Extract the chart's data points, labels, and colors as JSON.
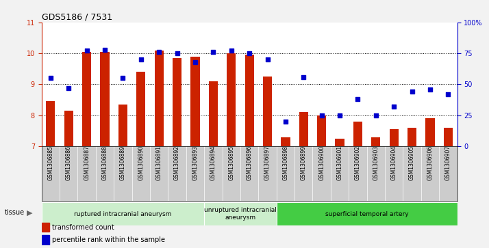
{
  "title": "GDS5186 / 7531",
  "samples": [
    "GSM1306885",
    "GSM1306886",
    "GSM1306887",
    "GSM1306888",
    "GSM1306889",
    "GSM1306890",
    "GSM1306891",
    "GSM1306892",
    "GSM1306893",
    "GSM1306894",
    "GSM1306895",
    "GSM1306896",
    "GSM1306897",
    "GSM1306898",
    "GSM1306899",
    "GSM1306900",
    "GSM1306901",
    "GSM1306902",
    "GSM1306903",
    "GSM1306904",
    "GSM1306905",
    "GSM1306906",
    "GSM1306907"
  ],
  "bar_values": [
    8.45,
    8.15,
    10.05,
    10.05,
    8.35,
    9.4,
    10.1,
    9.85,
    9.9,
    9.1,
    10.0,
    9.95,
    9.25,
    7.3,
    8.1,
    8.0,
    7.25,
    7.8,
    7.3,
    7.55,
    7.6,
    7.9,
    7.6
  ],
  "dot_values": [
    55,
    47,
    77,
    78,
    55,
    70,
    76,
    75,
    68,
    76,
    77,
    75,
    70,
    20,
    56,
    25,
    25,
    38,
    25,
    32,
    44,
    46,
    42
  ],
  "ylim_left": [
    7,
    11
  ],
  "ylim_right": [
    0,
    100
  ],
  "yticks_left": [
    7,
    8,
    9,
    10,
    11
  ],
  "yticks_right": [
    0,
    25,
    50,
    75,
    100
  ],
  "ytick_labels_right": [
    "0",
    "25",
    "50",
    "75",
    "100%"
  ],
  "bar_color": "#cc2200",
  "dot_color": "#0000cc",
  "grid_color": "#000000",
  "bg_plot": "#ffffff",
  "bg_xtick": "#cccccc",
  "fig_bg": "#f2f2f2",
  "tissue_groups": [
    {
      "label": "ruptured intracranial aneurysm",
      "start": 0,
      "end": 9,
      "color": "#cceecc"
    },
    {
      "label": "unruptured intracranial\naneurysm",
      "start": 9,
      "end": 13,
      "color": "#cceecc"
    },
    {
      "label": "superficial temporal artery",
      "start": 13,
      "end": 23,
      "color": "#44cc44"
    }
  ],
  "legend_bar_label": "transformed count",
  "legend_dot_label": "percentile rank within the sample",
  "tissue_label": "tissue"
}
